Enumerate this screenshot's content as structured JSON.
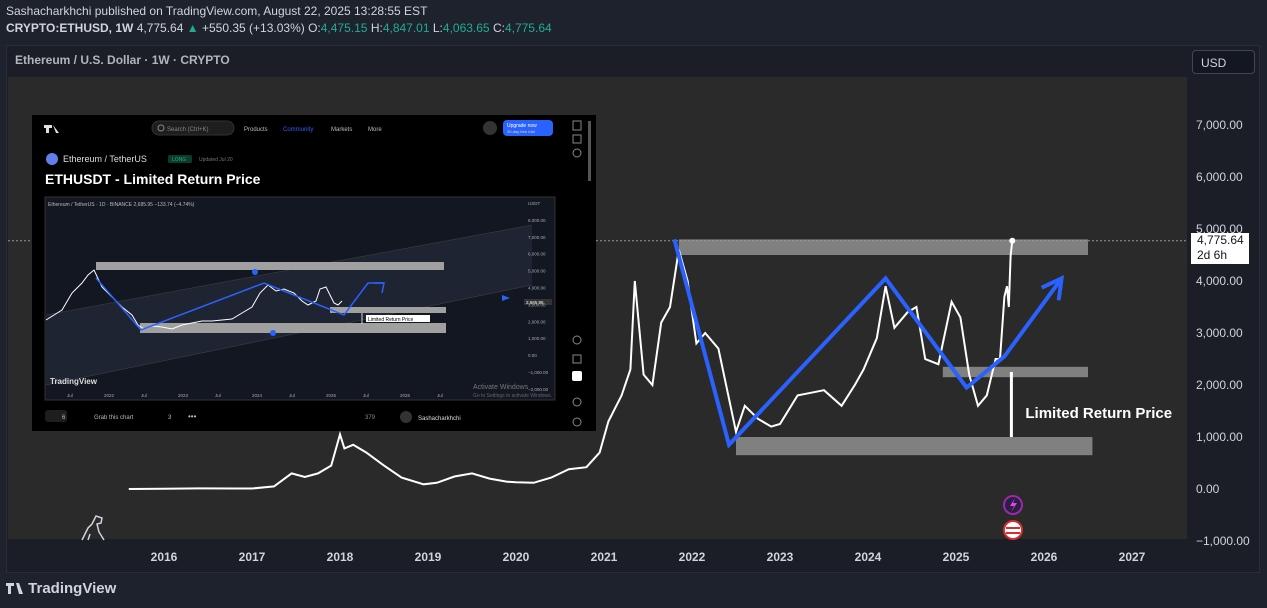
{
  "header": {
    "line1": "Sashacharkhchi published on TradingView.com, August 22, 2025 13:28:55 EST",
    "symbol": "CRYPTO:ETHUSD, 1W",
    "price": "4,775.64",
    "change_arrow": "▲",
    "change": "+550.35 (+13.03%)",
    "o_label": "O:",
    "o": "4,475.15",
    "h_label": "H:",
    "h": "4,847.01",
    "l_label": "L:",
    "l": "4,063.65",
    "c_label": "C:",
    "c": "4,775.64"
  },
  "chart_title": "Ethereum / U.S. Dollar · 1W · CRYPTO",
  "currency_button": "USD",
  "price_box": {
    "price": "4,775.64",
    "countdown": "2d 6h"
  },
  "footer_brand": "TradingView",
  "colors": {
    "background": "#2a2a2a",
    "price_line": "#ffffff",
    "pattern_line": "#2962ff",
    "zone": "#9e9e9e",
    "up": "#22ab94"
  },
  "chart_data": {
    "type": "line",
    "yaxis_ticks": [
      "7,000.00",
      "6,000.00",
      "5,000.00",
      "4,000.00",
      "3,000.00",
      "2,000.00",
      "1,000.00",
      "0.00",
      "−1,000.00"
    ],
    "xaxis_ticks": [
      "2016",
      "2017",
      "2018",
      "2019",
      "2020",
      "2021",
      "2022",
      "2023",
      "2024",
      "2025",
      "2026",
      "2027"
    ],
    "ylim": [
      -1000,
      7600
    ],
    "xlim": [
      2015.1,
      2027.8
    ],
    "series": [
      {
        "values": [
          [
            2015.6,
            0
          ],
          [
            2016.0,
            5
          ],
          [
            2016.4,
            12
          ],
          [
            2016.8,
            10
          ],
          [
            2017.0,
            10
          ],
          [
            2017.25,
            50
          ],
          [
            2017.45,
            300
          ],
          [
            2017.6,
            230
          ],
          [
            2017.75,
            300
          ],
          [
            2017.9,
            450
          ],
          [
            2018.0,
            1050
          ],
          [
            2018.05,
            780
          ],
          [
            2018.15,
            850
          ],
          [
            2018.3,
            700
          ],
          [
            2018.5,
            450
          ],
          [
            2018.7,
            220
          ],
          [
            2018.95,
            90
          ],
          [
            2019.1,
            120
          ],
          [
            2019.3,
            240
          ],
          [
            2019.5,
            300
          ],
          [
            2019.7,
            200
          ],
          [
            2019.9,
            140
          ],
          [
            2020.0,
            130
          ],
          [
            2020.2,
            120
          ],
          [
            2020.4,
            220
          ],
          [
            2020.6,
            380
          ],
          [
            2020.8,
            420
          ],
          [
            2020.95,
            700
          ],
          [
            2021.05,
            1300
          ],
          [
            2021.2,
            1800
          ],
          [
            2021.3,
            2300
          ],
          [
            2021.35,
            4000
          ],
          [
            2021.45,
            2200
          ],
          [
            2021.55,
            2000
          ],
          [
            2021.65,
            3200
          ],
          [
            2021.75,
            3500
          ],
          [
            2021.85,
            4600
          ],
          [
            2021.95,
            4000
          ],
          [
            2022.05,
            2800
          ],
          [
            2022.15,
            3000
          ],
          [
            2022.3,
            2700
          ],
          [
            2022.4,
            1900
          ],
          [
            2022.5,
            1100
          ],
          [
            2022.6,
            1600
          ],
          [
            2022.75,
            1350
          ],
          [
            2022.9,
            1200
          ],
          [
            2023.0,
            1250
          ],
          [
            2023.2,
            1800
          ],
          [
            2023.35,
            1850
          ],
          [
            2023.5,
            1900
          ],
          [
            2023.7,
            1600
          ],
          [
            2023.85,
            2000
          ],
          [
            2023.95,
            2300
          ],
          [
            2024.1,
            2900
          ],
          [
            2024.2,
            3900
          ],
          [
            2024.3,
            3100
          ],
          [
            2024.45,
            3400
          ],
          [
            2024.55,
            3500
          ],
          [
            2024.65,
            2500
          ],
          [
            2024.8,
            2400
          ],
          [
            2024.95,
            3600
          ],
          [
            2025.05,
            3300
          ],
          [
            2025.15,
            2200
          ],
          [
            2025.25,
            1600
          ],
          [
            2025.35,
            1800
          ],
          [
            2025.45,
            2500
          ],
          [
            2025.5,
            2500
          ],
          [
            2025.55,
            3700
          ],
          [
            2025.58,
            3900
          ],
          [
            2025.6,
            3500
          ],
          [
            2025.62,
            4480
          ],
          [
            2025.64,
            4775
          ]
        ]
      }
    ],
    "overlays": [
      {
        "type": "pattern_line",
        "points": [
          [
            2021.8,
            4800
          ],
          [
            2022.42,
            850
          ],
          [
            2024.2,
            4050
          ],
          [
            2025.12,
            1950
          ],
          [
            2025.55,
            2550
          ],
          [
            2026.2,
            4050
          ]
        ]
      },
      {
        "type": "zone",
        "range_x": [
          2021.85,
          2026.5
        ],
        "range_y": [
          4500,
          4800
        ]
      },
      {
        "type": "zone",
        "range_x": [
          2024.85,
          2026.5
        ],
        "range_y": [
          2150,
          2350
        ]
      },
      {
        "type": "zone",
        "range_x": [
          2022.5,
          2026.55
        ],
        "range_y": [
          650,
          1000
        ]
      }
    ],
    "annotations": [
      {
        "text": "Limited Return Price",
        "x": 2025.8,
        "y": 1400
      }
    ]
  },
  "inset": {
    "brand": "TradingView",
    "search": "Search (Ctrl+K)",
    "nav": [
      "Products",
      "Community",
      "Markets",
      "More"
    ],
    "upgrade": "Upgrade now",
    "upgrade_sub": "30-day free trial",
    "pair": "Ethereum / TetherUS",
    "long_tag": "LONG",
    "updated": "Updated Jul 20",
    "title": "ETHUSDT - Limited Return Price",
    "legend": "Ethereum / TetherUS · 1D · BINANCE  2,685.95  −133.74 (−4.74%)",
    "yticks": [
      "USDT",
      "8,000.00",
      "7,000.00",
      "6,000.00",
      "5,000.00",
      "4,000.00",
      "3,000.00",
      "2,000.00",
      "1,000.00",
      "0.00",
      "−1,000.00",
      "−2,000.00"
    ],
    "price_tag": "2,685.95",
    "xticks": [
      "Jul",
      "2022",
      "Jul",
      "2023",
      "Jul",
      "2024",
      "Jul",
      "2025",
      "Jul",
      "2026",
      "Jul"
    ],
    "annotation": "Limited Return Price",
    "watermark1": "Activate Windows",
    "watermark2": "Go to Settings to activate Windows.",
    "boosts": "6",
    "grab": "Grab this chart",
    "comments": "3",
    "views": "379",
    "author": "Sashacharkhchi"
  }
}
